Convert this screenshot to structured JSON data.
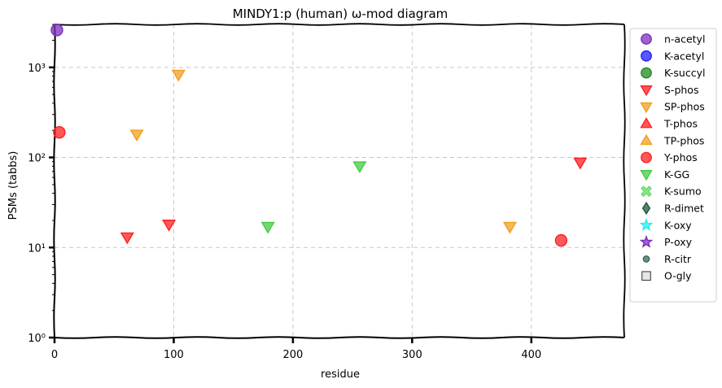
{
  "chart_data": {
    "type": "scatter",
    "title": "MINDY1:p (human) ω-mod diagram",
    "xlabel": "residue",
    "ylabel": "PSMs (tabbs)",
    "x_scale": "linear",
    "y_scale": "log",
    "xlim": [
      0,
      478
    ],
    "ylim": [
      1,
      3000
    ],
    "x_ticks": [
      0,
      100,
      200,
      300,
      400
    ],
    "x_tick_labels": [
      "0",
      "100",
      "200",
      "300",
      "400"
    ],
    "y_ticks": [
      1,
      10,
      100,
      1000
    ],
    "y_tick_labels": [
      "10⁰",
      "10¹",
      "10²",
      "10³"
    ],
    "grid": true,
    "legend_position": "outside-right",
    "legend": [
      {
        "name": "n-acetyl",
        "marker": "circle",
        "color": "#7b2fbf"
      },
      {
        "name": "K-acetyl",
        "marker": "circle",
        "color": "#1f1fff"
      },
      {
        "name": "K-succyl",
        "marker": "circle",
        "color": "#228b22"
      },
      {
        "name": "S-phos",
        "marker": "triangle-down",
        "color": "#ff2020"
      },
      {
        "name": "SP-phos",
        "marker": "triangle-down",
        "color": "#f0a020"
      },
      {
        "name": "T-phos",
        "marker": "triangle-up",
        "color": "#ff2020"
      },
      {
        "name": "TP-phos",
        "marker": "triangle-up",
        "color": "#f0a020"
      },
      {
        "name": "Y-phos",
        "marker": "circle",
        "color": "#ff2020"
      },
      {
        "name": "K-GG",
        "marker": "triangle-down",
        "color": "#44cc44"
      },
      {
        "name": "K-sumo",
        "marker": "x",
        "color": "#66dd66"
      },
      {
        "name": "R-dimet",
        "marker": "diamond",
        "color": "#1e5a3a"
      },
      {
        "name": "K-oxy",
        "marker": "star",
        "color": "#22eeee"
      },
      {
        "name": "P-oxy",
        "marker": "star",
        "color": "#7b2fbf"
      },
      {
        "name": "R-citr",
        "marker": "small-circle",
        "color": "#3a6a55"
      },
      {
        "name": "O-gly",
        "marker": "square",
        "color": "#dddddd"
      }
    ],
    "series": [
      {
        "name": "n-acetyl",
        "points": [
          {
            "x": 2,
            "y": 2600
          }
        ]
      },
      {
        "name": "S-phos",
        "points": [
          {
            "x": 61,
            "y": 13
          },
          {
            "x": 96,
            "y": 18
          },
          {
            "x": 441,
            "y": 88
          }
        ]
      },
      {
        "name": "SP-phos",
        "points": [
          {
            "x": 69,
            "y": 180
          },
          {
            "x": 104,
            "y": 830
          },
          {
            "x": 382,
            "y": 17
          }
        ]
      },
      {
        "name": "Y-phos",
        "points": [
          {
            "x": 4,
            "y": 190
          },
          {
            "x": 425,
            "y": 12
          }
        ]
      },
      {
        "name": "K-GG",
        "points": [
          {
            "x": 179,
            "y": 17
          },
          {
            "x": 256,
            "y": 80
          }
        ]
      }
    ]
  }
}
